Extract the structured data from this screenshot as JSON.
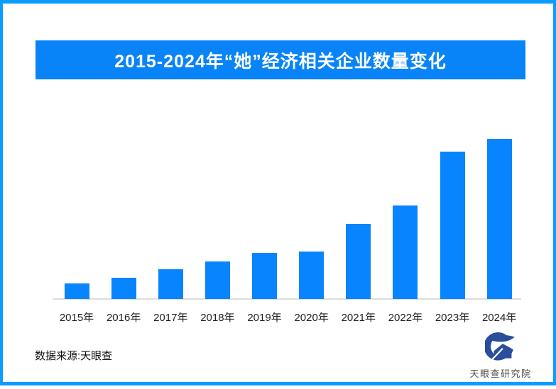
{
  "title": "2015-2024年“她”经济相关企业数量变化",
  "theme": {
    "frame_blue": "#0a9cfe",
    "banner_blue": "#0884f8",
    "bar_blue": "#0884ff",
    "axis_gray": "#dcdcdc",
    "tick_label_color": "#222222",
    "logo_navy": "#2a4d9d"
  },
  "chart_data": {
    "type": "bar",
    "title": "2015-2024年“她”经济相关企业数量变化",
    "categories": [
      "2015年",
      "2016年",
      "2017年",
      "2018年",
      "2019年",
      "2020年",
      "2021年",
      "2022年",
      "2023年",
      "2024年"
    ],
    "values": [
      9.8,
      13.3,
      18.8,
      23.7,
      28.8,
      29.9,
      47.0,
      58.5,
      92.2,
      100
    ],
    "units": "relative height, max bar (2024) = 100; no numeric labels shown",
    "xlabel": "",
    "ylabel": "",
    "ylim": [
      0,
      100
    ],
    "grid": false,
    "legend": false
  },
  "footer": {
    "source": "数据来源:天眼查",
    "brand": "天眼查研究院"
  }
}
